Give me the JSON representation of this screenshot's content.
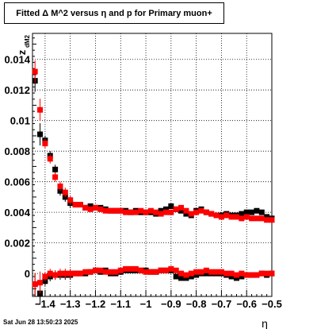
{
  "chart_data": {
    "type": "scatter",
    "title": "Fitted Δ M^2 versus η and p for Primary muon+",
    "xlabel": "η",
    "ylabel": "z",
    "ylabel_sub": "dM2",
    "xlim": [
      -1.45,
      -0.5
    ],
    "ylim": [
      -0.0015,
      0.0157
    ],
    "x_ticks": [
      -1.4,
      -1.3,
      -1.2,
      -1.1,
      -1.0,
      -0.9,
      -0.8,
      -0.7,
      -0.6,
      -0.5
    ],
    "x_tick_labels": [
      "−1.4",
      "−1.3",
      "−1.2",
      "−1.1",
      "−1",
      "−0.9",
      "−0.8",
      "−0.7",
      "−0.6",
      "−0.5"
    ],
    "y_ticks": [
      0.0,
      0.002,
      0.004,
      0.006,
      0.008,
      0.01,
      0.012,
      0.014
    ],
    "y_tick_labels": [
      "0",
      "0.002",
      "0.004",
      "0.006",
      "0.008",
      "0.01",
      "0.012",
      "0.014"
    ],
    "grid": true,
    "series": [
      {
        "color": "#000000",
        "x": [
          -1.44,
          -1.42,
          -1.4,
          -1.38,
          -1.36,
          -1.34,
          -1.32,
          -1.3,
          -1.28,
          -1.26,
          -1.24,
          -1.22,
          -1.2,
          -1.18,
          -1.16,
          -1.14,
          -1.12,
          -1.1,
          -1.08,
          -1.06,
          -1.04,
          -1.02,
          -1.0,
          -0.98,
          -0.96,
          -0.94,
          -0.92,
          -0.9,
          -0.88,
          -0.86,
          -0.84,
          -0.82,
          -0.8,
          -0.78,
          -0.76,
          -0.74,
          -0.72,
          -0.7,
          -0.68,
          -0.66,
          -0.64,
          -0.62,
          -0.6,
          -0.58,
          -0.56,
          -0.54,
          -0.52,
          -0.5
        ],
        "y": [
          0.0126,
          0.0091,
          0.0087,
          0.0077,
          0.0068,
          0.0054,
          0.005,
          0.0046,
          0.0045,
          0.0045,
          0.0043,
          0.0044,
          0.0043,
          0.0043,
          0.0042,
          0.0041,
          0.0041,
          0.0041,
          0.0041,
          0.004,
          0.0041,
          0.004,
          0.004,
          0.004,
          0.0039,
          0.0041,
          0.0042,
          0.0044,
          0.0042,
          0.0041,
          0.0039,
          0.0038,
          0.0041,
          0.0042,
          0.004,
          0.0039,
          0.0038,
          0.0038,
          0.0039,
          0.0038,
          0.0038,
          0.0039,
          0.004,
          0.004,
          0.0041,
          0.004,
          0.0037,
          0.0036
        ]
      },
      {
        "color": "#000000",
        "x": [
          -1.44,
          -1.42,
          -1.4,
          -1.38,
          -1.36,
          -1.34,
          -1.32,
          -1.3,
          -1.28,
          -1.26,
          -1.24,
          -1.22,
          -1.2,
          -1.18,
          -1.16,
          -1.14,
          -1.12,
          -1.1,
          -1.08,
          -1.06,
          -1.04,
          -1.02,
          -1.0,
          -0.98,
          -0.96,
          -0.94,
          -0.92,
          -0.9,
          -0.88,
          -0.86,
          -0.84,
          -0.82,
          -0.8,
          -0.78,
          -0.76,
          -0.74,
          -0.72,
          -0.7,
          -0.68,
          -0.66,
          -0.64,
          -0.62,
          -0.6,
          -0.58,
          -0.56,
          -0.54,
          -0.52,
          -0.5
        ],
        "y": [
          -0.0007,
          -0.0013,
          -0.0005,
          -0.0002,
          -0.0001,
          -0.0001,
          -0.0001,
          -0.0001,
          0.0,
          0.0,
          0.0,
          0.0001,
          0.0002,
          0.0001,
          0.0002,
          0.0,
          0.0,
          0.0001,
          0.0002,
          0.0002,
          0.0002,
          0.0002,
          0.0002,
          0.0001,
          0.0001,
          0.0002,
          0.0002,
          0.0002,
          -0.0002,
          -0.0003,
          -0.0003,
          -0.0002,
          -0.0001,
          0.0,
          0.0,
          0.0,
          0.0,
          0.0,
          -0.0001,
          -0.0002,
          -0.0003,
          -0.0002,
          -0.0001,
          -0.0001,
          -0.0001,
          0.0,
          -0.0001,
          0.0
        ]
      },
      {
        "color": "#ff0000",
        "x": [
          -1.44,
          -1.42,
          -1.4,
          -1.38,
          -1.36,
          -1.34,
          -1.32,
          -1.3,
          -1.28,
          -1.26,
          -1.24,
          -1.22,
          -1.2,
          -1.18,
          -1.16,
          -1.14,
          -1.12,
          -1.1,
          -1.08,
          -1.06,
          -1.04,
          -1.02,
          -1.0,
          -0.98,
          -0.96,
          -0.94,
          -0.92,
          -0.9,
          -0.88,
          -0.86,
          -0.84,
          -0.82,
          -0.8,
          -0.78,
          -0.76,
          -0.74,
          -0.72,
          -0.7,
          -0.68,
          -0.66,
          -0.64,
          -0.62,
          -0.6,
          -0.58,
          -0.56,
          -0.54,
          -0.52,
          -0.5
        ],
        "y": [
          0.0132,
          0.0107,
          0.0085,
          0.0075,
          0.0063,
          0.0057,
          0.0053,
          0.0048,
          0.0045,
          0.0045,
          0.0043,
          0.0042,
          0.0043,
          0.0042,
          0.0041,
          0.0041,
          0.0041,
          0.0041,
          0.004,
          0.004,
          0.004,
          0.0041,
          0.004,
          0.0041,
          0.004,
          0.0039,
          0.004,
          0.004,
          0.0042,
          0.0043,
          0.0041,
          0.0039,
          0.004,
          0.0041,
          0.004,
          0.0039,
          0.0038,
          0.0037,
          0.0038,
          0.0037,
          0.0037,
          0.0036,
          0.0037,
          0.0036,
          0.0036,
          0.0036,
          0.0035,
          0.0035
        ]
      },
      {
        "color": "#ff0000",
        "x": [
          -1.44,
          -1.42,
          -1.4,
          -1.38,
          -1.36,
          -1.34,
          -1.32,
          -1.3,
          -1.28,
          -1.26,
          -1.24,
          -1.22,
          -1.2,
          -1.18,
          -1.16,
          -1.14,
          -1.12,
          -1.1,
          -1.08,
          -1.06,
          -1.04,
          -1.02,
          -1.0,
          -0.98,
          -0.96,
          -0.94,
          -0.92,
          -0.9,
          -0.88,
          -0.86,
          -0.84,
          -0.82,
          -0.8,
          -0.78,
          -0.76,
          -0.74,
          -0.72,
          -0.7,
          -0.68,
          -0.66,
          -0.64,
          -0.62,
          -0.6,
          -0.58,
          -0.56,
          -0.54,
          -0.52,
          -0.5
        ],
        "y": [
          -0.0007,
          -0.0006,
          -0.0002,
          0.0,
          -0.0001,
          0.0,
          0.0,
          0.0,
          0.0,
          0.0,
          0.0001,
          0.0001,
          0.0002,
          0.0002,
          0.0001,
          0.0001,
          0.0001,
          0.0002,
          0.0003,
          0.0003,
          0.0003,
          0.0002,
          0.0001,
          0.0001,
          0.0001,
          0.0002,
          0.0002,
          0.0003,
          0.0002,
          0.0,
          -0.0001,
          0.0,
          0.0001,
          0.0001,
          0.0002,
          0.0001,
          0.0001,
          0.0001,
          0.0,
          0.0,
          -0.0001,
          0.0,
          -0.0001,
          -0.0001,
          -0.0001,
          0.0,
          0.0,
          0.0
        ]
      }
    ]
  },
  "timestamp": "Sat Jun 28 13:50:23 2025"
}
